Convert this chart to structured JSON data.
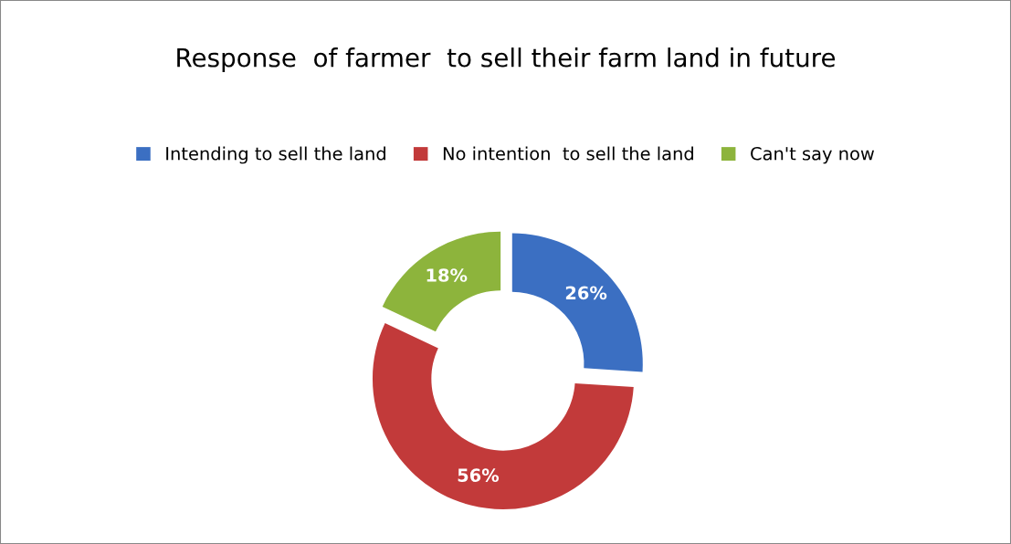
{
  "chart_data": {
    "type": "donut",
    "title": "Response  of farmer  to sell their farm land in future",
    "categories": [
      "Intending to sell the land",
      "No intention  to sell the land",
      "Can't say now"
    ],
    "values": [
      26,
      56,
      18
    ],
    "colors": [
      "#3b6fc2",
      "#c23a3a",
      "#8db43c"
    ],
    "value_labels": [
      "26%",
      "56%",
      "18%"
    ],
    "legend": "top"
  }
}
